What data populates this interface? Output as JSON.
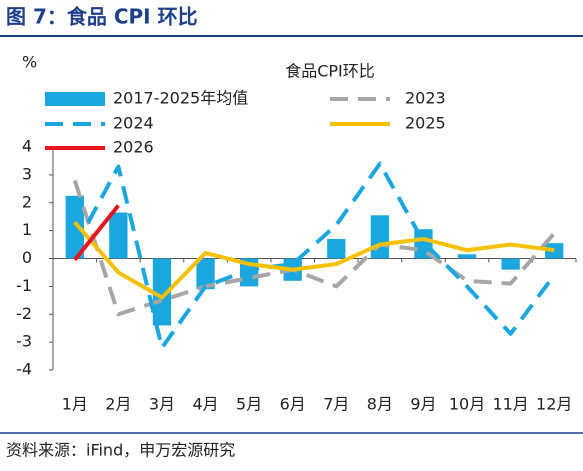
{
  "header": "图 7：食品 CPI 环比",
  "source": "资料来源：iFind，申万宏源研究",
  "chart_data": {
    "type": "bar",
    "title": "食品CPI环比",
    "y_label": "%",
    "categories": [
      "1月",
      "2月",
      "3月",
      "4月",
      "5月",
      "6月",
      "7月",
      "8月",
      "9月",
      "10月",
      "11月",
      "12月"
    ],
    "ylim": [
      -4,
      4
    ],
    "yticks": [
      -4,
      -3,
      -2,
      -1,
      0,
      1,
      2,
      3,
      4
    ],
    "series": [
      {
        "name": "2017-2025年均值",
        "type": "bar",
        "color": "#1aa7e0",
        "values": [
          2.25,
          1.65,
          -2.4,
          -1.1,
          -1.0,
          -0.8,
          0.7,
          1.55,
          1.05,
          0.15,
          -0.4,
          0.55
        ]
      },
      {
        "name": "2023",
        "type": "line",
        "dashed": true,
        "color": "#a6a6a6",
        "values": [
          2.8,
          -2.0,
          -1.5,
          -1.0,
          -0.7,
          -0.4,
          -1.0,
          0.5,
          0.3,
          -0.8,
          -0.9,
          0.9
        ]
      },
      {
        "name": "2024",
        "type": "line",
        "dashed": true,
        "color": "#1aa7e0",
        "values": [
          0.4,
          3.3,
          -3.2,
          -1.0,
          -0.4,
          -0.2,
          1.2,
          3.4,
          0.6,
          -1.0,
          -2.7,
          -0.6
        ]
      },
      {
        "name": "2025",
        "type": "line",
        "dashed": false,
        "color": "#f5c000",
        "values": [
          1.3,
          -0.5,
          -1.4,
          0.2,
          -0.2,
          -0.4,
          -0.2,
          0.5,
          0.7,
          0.3,
          0.5,
          0.3
        ]
      },
      {
        "name": "2026",
        "type": "line",
        "dashed": false,
        "color": "#e8141e",
        "values": [
          -0.05,
          1.9,
          null,
          null,
          null,
          null,
          null,
          null,
          null,
          null,
          null,
          null
        ]
      }
    ]
  }
}
